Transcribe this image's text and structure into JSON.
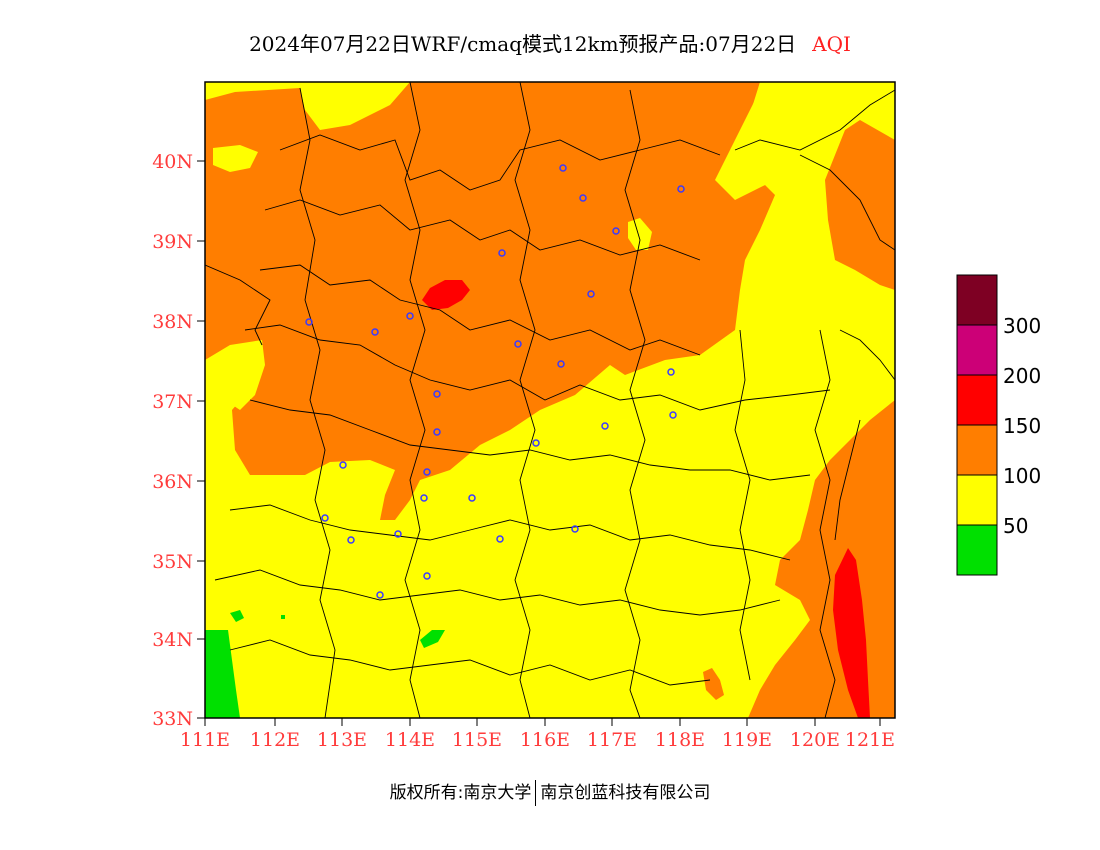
{
  "title": {
    "text": "2024年07月22日WRF/cmaq模式12km预报产品:07月22日",
    "variable": "AQI"
  },
  "map": {
    "lat_labels": [
      "40N",
      "39N",
      "38N",
      "37N",
      "36N",
      "35N",
      "34N",
      "33N"
    ],
    "lon_labels": [
      "111E",
      "112E",
      "113E",
      "114E",
      "115E",
      "116E",
      "117E",
      "118E",
      "119E",
      "120E",
      "121E"
    ],
    "legend": {
      "colors": [
        "#00e000",
        "#ffff00",
        "#ff7e00",
        "#ff0000",
        "#cc0077",
        "#7e0023"
      ],
      "ticks": [
        "50",
        "100",
        "150",
        "200",
        "300"
      ]
    }
  },
  "footer": {
    "left": "版权所有:南京大学",
    "right": "南京创蓝科技有限公司"
  }
}
